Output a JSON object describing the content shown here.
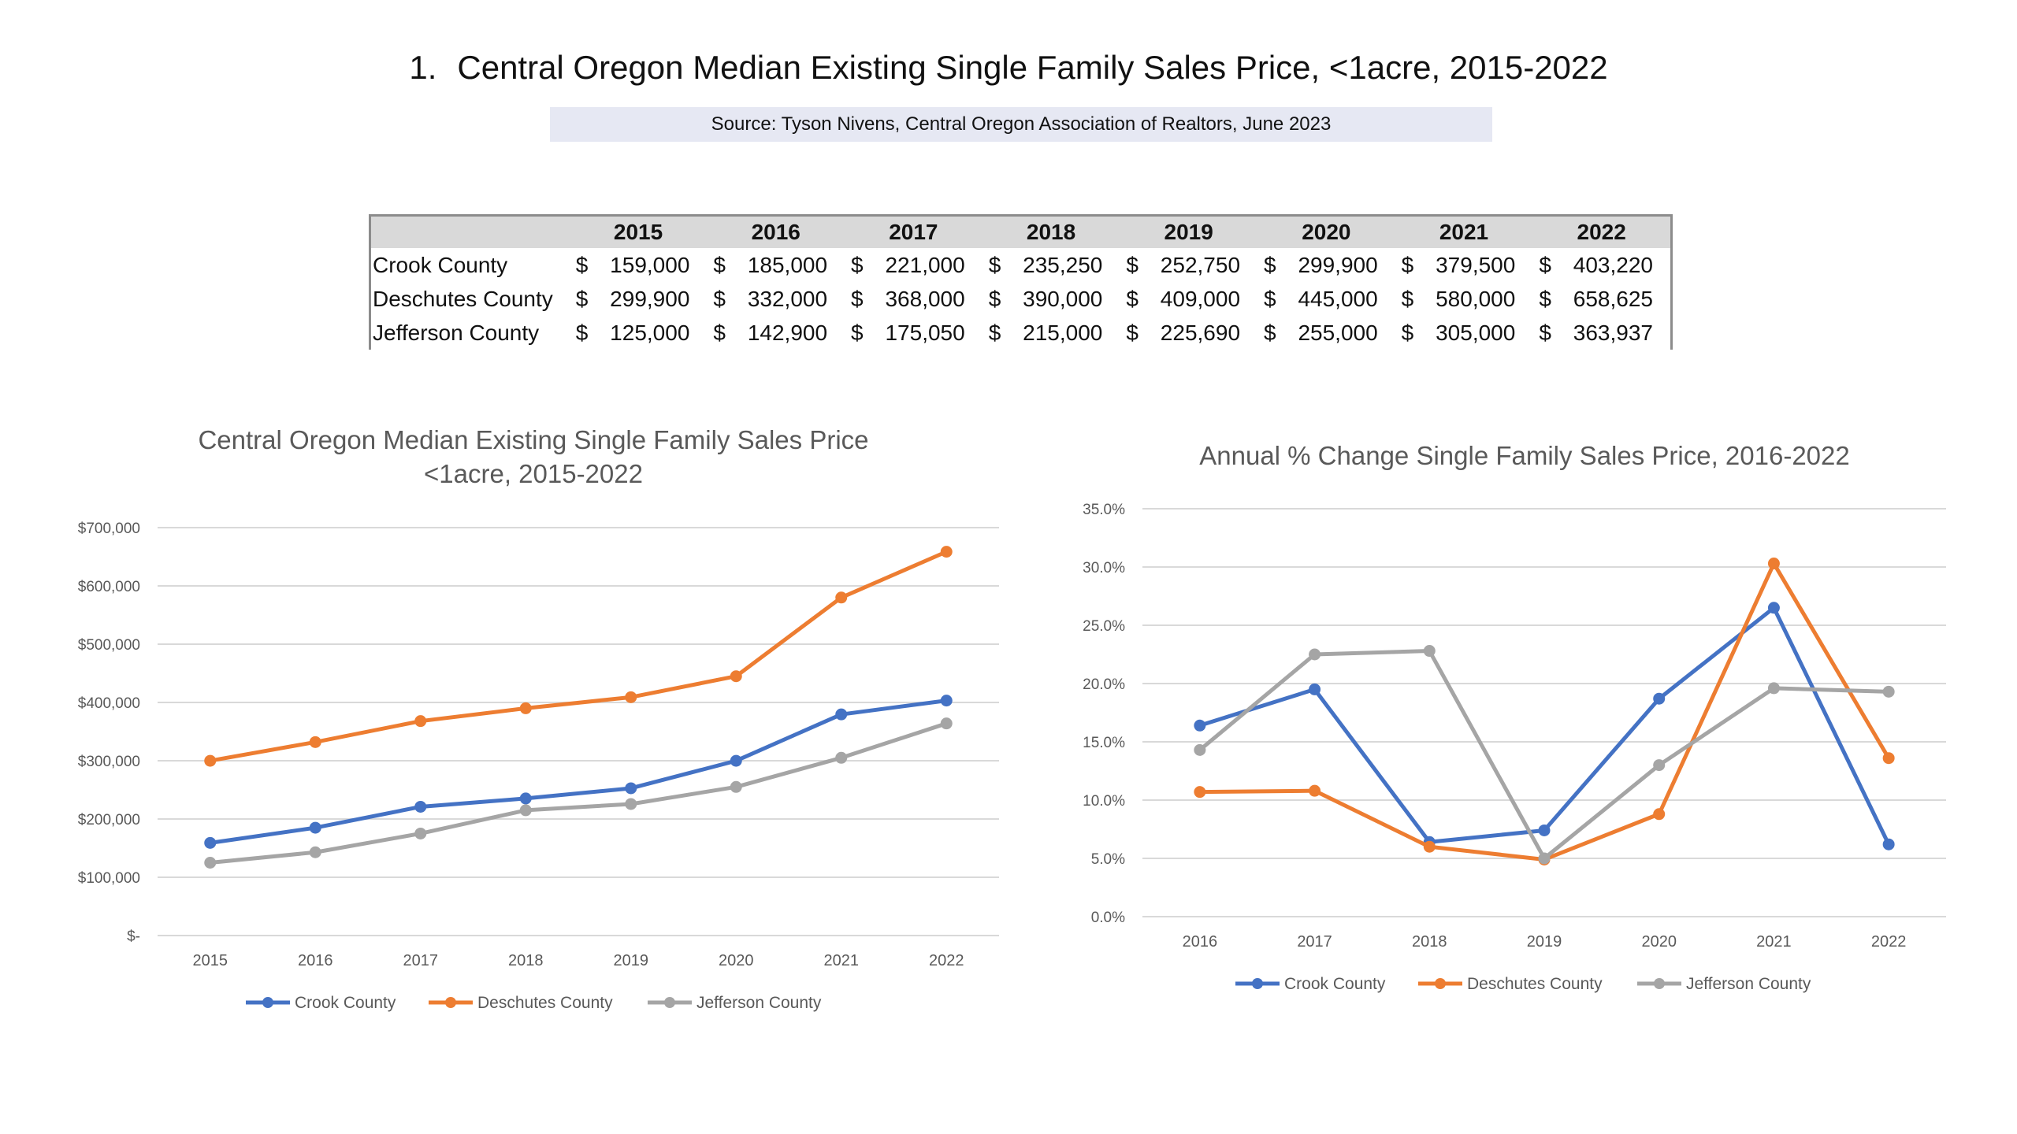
{
  "heading": {
    "number": "1.",
    "text": "Central Oregon Median Existing Single Family Sales Price, <1acre, 2015-2022"
  },
  "source": "Source: Tyson Nivens, Central Oregon Association of Realtors, June 2023",
  "table": {
    "columns": [
      "2015",
      "2016",
      "2017",
      "2018",
      "2019",
      "2020",
      "2021",
      "2022"
    ],
    "currency": "$",
    "rows": [
      {
        "label": "Crook County",
        "values": [
          "159,000",
          "185,000",
          "221,000",
          "235,250",
          "252,750",
          "299,900",
          "379,500",
          "403,220"
        ]
      },
      {
        "label": "Deschutes County",
        "values": [
          "299,900",
          "332,000",
          "368,000",
          "390,000",
          "409,000",
          "445,000",
          "580,000",
          "658,625"
        ]
      },
      {
        "label": "Jefferson County",
        "values": [
          "125,000",
          "142,900",
          "175,050",
          "215,000",
          "225,690",
          "255,000",
          "305,000",
          "363,937"
        ]
      }
    ]
  },
  "colors": {
    "crook": "#4472c4",
    "deschutes": "#ed7d31",
    "jefferson": "#a5a5a5",
    "grid": "#d9d9d9",
    "axis_text": "#595959",
    "title_text": "#595959"
  },
  "chart_data": [
    {
      "type": "line",
      "title": "Central Oregon Median Existing Single Family Sales Price",
      "subtitle": "<1acre, 2015-2022",
      "xlabel": "",
      "ylabel": "",
      "categories": [
        "2015",
        "2016",
        "2017",
        "2018",
        "2019",
        "2020",
        "2021",
        "2022"
      ],
      "ylim": [
        0,
        700000
      ],
      "yticks": [
        0,
        100000,
        200000,
        300000,
        400000,
        500000,
        600000,
        700000
      ],
      "ytick_labels": [
        "$-",
        "$100,000",
        "$200,000",
        "$300,000",
        "$400,000",
        "$500,000",
        "$600,000",
        "$700,000"
      ],
      "grid": true,
      "legend": "bottom",
      "series": [
        {
          "name": "Crook County",
          "color": "#4472c4",
          "values": [
            159000,
            185000,
            221000,
            235250,
            252750,
            299900,
            379500,
            403220
          ]
        },
        {
          "name": "Deschutes County",
          "color": "#ed7d31",
          "values": [
            299900,
            332000,
            368000,
            390000,
            409000,
            445000,
            580000,
            658625
          ]
        },
        {
          "name": "Jefferson County",
          "color": "#a5a5a5",
          "values": [
            125000,
            142900,
            175050,
            215000,
            225690,
            255000,
            305000,
            363937
          ]
        }
      ]
    },
    {
      "type": "line",
      "title": "Annual % Change Single Family Sales Price, 2016-2022",
      "subtitle": "",
      "xlabel": "",
      "ylabel": "",
      "categories": [
        "2016",
        "2017",
        "2018",
        "2019",
        "2020",
        "2021",
        "2022"
      ],
      "ylim": [
        0,
        35
      ],
      "yticks": [
        0,
        5,
        10,
        15,
        20,
        25,
        30,
        35
      ],
      "ytick_labels": [
        "0.0%",
        "5.0%",
        "10.0%",
        "15.0%",
        "20.0%",
        "25.0%",
        "30.0%",
        "35.0%"
      ],
      "grid": true,
      "legend": "bottom",
      "series": [
        {
          "name": "Crook County",
          "color": "#4472c4",
          "values": [
            16.4,
            19.5,
            6.4,
            7.4,
            18.7,
            26.5,
            6.2
          ]
        },
        {
          "name": "Deschutes County",
          "color": "#ed7d31",
          "values": [
            10.7,
            10.8,
            6.0,
            4.9,
            8.8,
            30.3,
            13.6
          ]
        },
        {
          "name": "Jefferson County",
          "color": "#a5a5a5",
          "values": [
            14.3,
            22.5,
            22.8,
            5.0,
            13.0,
            19.6,
            19.3
          ]
        }
      ]
    }
  ]
}
